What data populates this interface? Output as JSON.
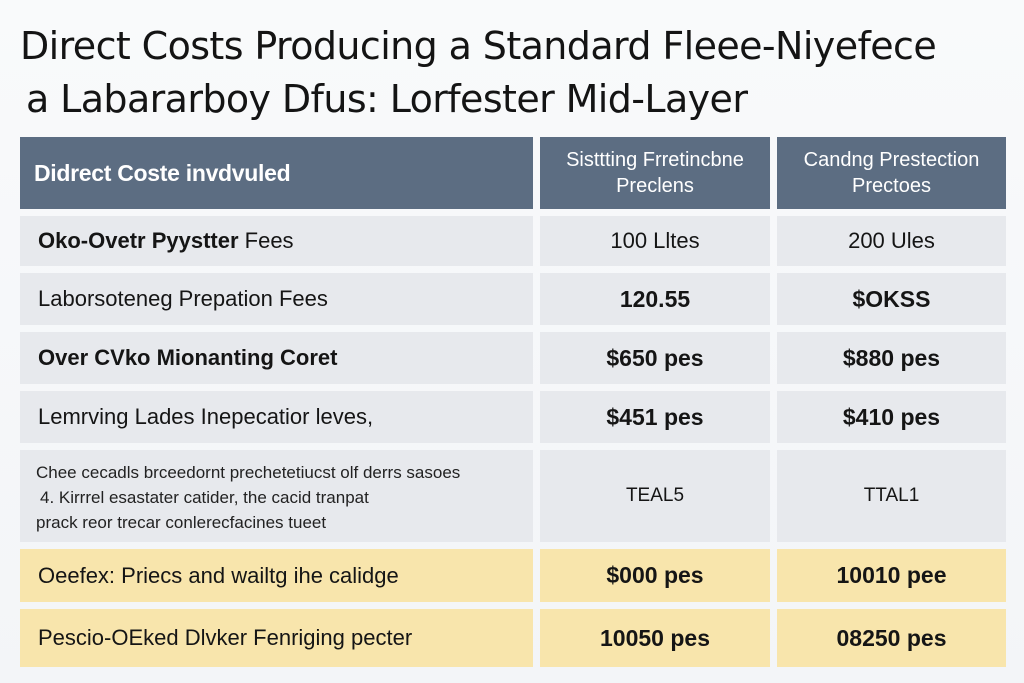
{
  "title": {
    "line1": "Direct Costs Producing a Standard Fleee-Niyefece",
    "line2": "a Labararboy Dfus: Lorfester Mid-Layer"
  },
  "table": {
    "headers": {
      "col1": "Didrect Coste invdvuled",
      "col2": "Sisttting Frretincbne Preclens",
      "col3": "Candng Prestection Prectoes"
    },
    "rows": [
      {
        "label": "Oko-Ovetr Pyystter Fees",
        "label_bold": "Oko-Ovetr Pyystter",
        "label_rest": " Fees",
        "v1": "100 Lltes",
        "v2": "200 Ules"
      },
      {
        "label": "Laborsotenеg Prepation Fees",
        "v1": "120.55",
        "v2": "$OKSS"
      },
      {
        "label": "Over CVko Mionanting Coret",
        "v1": "$650 pes",
        "v2": "$880 pes"
      },
      {
        "label": "Lemrving Lades Inepecatior leves,",
        "v1": "$451 pes",
        "v2": "$410 pes"
      },
      {
        "note_lines": [
          "Chee cecadls brceedornt prechetetiucst olf derrs sasoes",
          "4. Kirrrel esastater catider, the cacid tranpat",
          "prack reor trecar conlerecfacines tueet"
        ],
        "v1": "TEAL5",
        "v2": "TTAL1"
      },
      {
        "label": "Oeefex: Priecs and wailtg ihe calidge",
        "v1": "$000 pes",
        "v2": "10010 pee"
      },
      {
        "label": "Pescio-OEked Dlvker Fenriging pecter",
        "v1": "10050 pes",
        "v2": "08250 pes"
      }
    ]
  },
  "colors": {
    "header": "#5c6d82",
    "row_gray": "#e7e9ed",
    "row_yellow": "#f8e5ac"
  }
}
